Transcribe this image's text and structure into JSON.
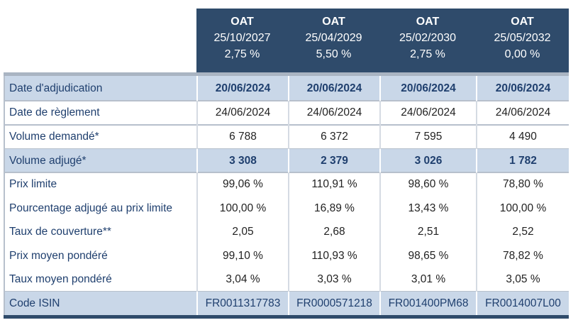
{
  "header": {
    "columns": [
      {
        "name": "OAT",
        "maturity": "25/10/2027",
        "coupon": "2,75 %"
      },
      {
        "name": "OAT",
        "maturity": "25/04/2029",
        "coupon": "5,50 %"
      },
      {
        "name": "OAT",
        "maturity": "25/02/2030",
        "coupon": "2,75 %"
      },
      {
        "name": "OAT",
        "maturity": "25/05/2032",
        "coupon": "0,00 %"
      }
    ]
  },
  "table": {
    "rows": [
      [
        "Date d'adjudication",
        "20/06/2024",
        "20/06/2024",
        "20/06/2024",
        "20/06/2024"
      ],
      [
        "Date de règlement",
        "24/06/2024",
        "24/06/2024",
        "24/06/2024",
        "24/06/2024"
      ],
      [
        "Volume demandé*",
        "6 788",
        "6 372",
        "7 595",
        "4 490"
      ],
      [
        "Volume adjugé*",
        "3 308",
        "2 379",
        "3 026",
        "1 782"
      ],
      [
        "Prix limite",
        "99,06 %",
        "110,91 %",
        "98,60 %",
        "78,80 %"
      ],
      [
        "Pourcentage adjugé au prix limite",
        "100,00 %",
        "16,89 %",
        "13,43 %",
        "100,00 %"
      ],
      [
        "Taux de couverture**",
        "2,05",
        "2,68",
        "2,51",
        "2,52"
      ],
      [
        "Prix moyen pondéré",
        "99,10 %",
        "110,93 %",
        "98,65 %",
        "78,82 %"
      ],
      [
        "Taux moyen pondéré",
        "3,04 %",
        "3,03 %",
        "3,01 %",
        "3,05 %"
      ],
      [
        "Code ISIN",
        "FR0011317783",
        "FR0000571218",
        "FR001400PM68",
        "FR0014007L00"
      ]
    ]
  }
}
